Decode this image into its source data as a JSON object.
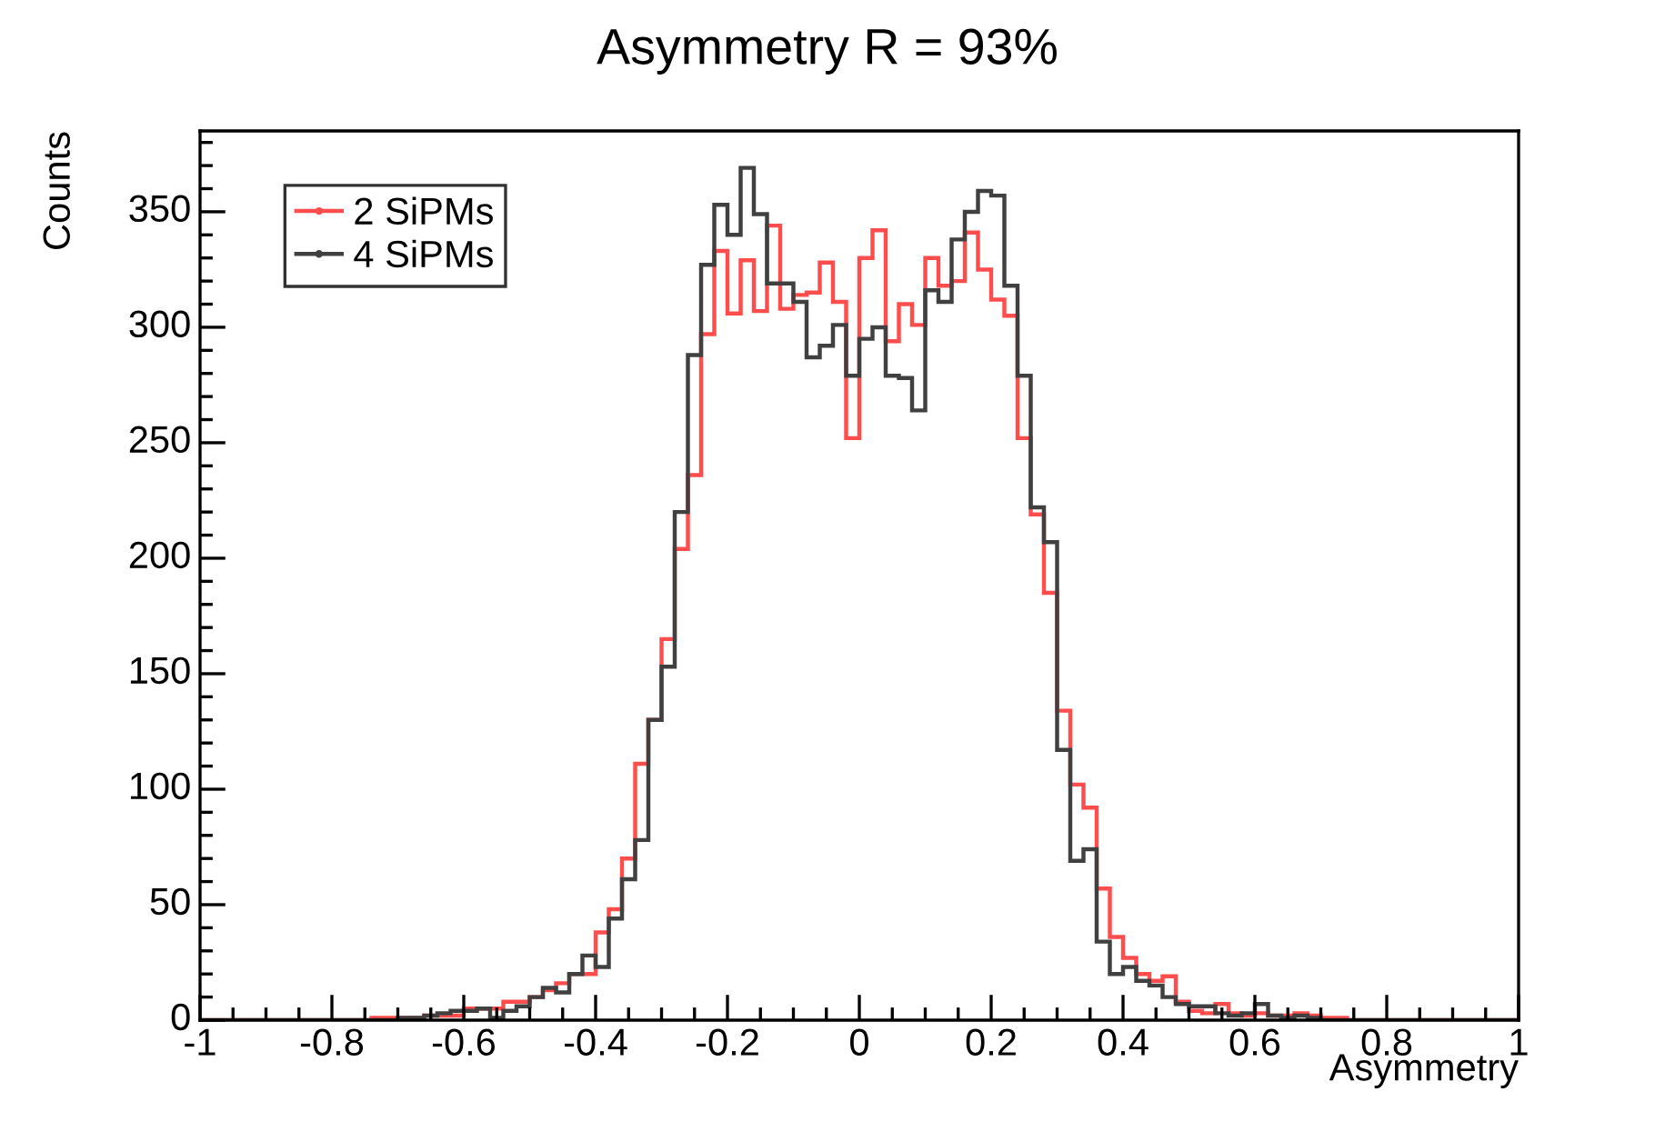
{
  "chart_data": {
    "type": "histogram",
    "title": "Asymmetry R = 93%",
    "xlabel": "Asymmetry",
    "ylabel": "Counts",
    "bins": [
      -1,
      -0.98,
      -0.96,
      -0.94,
      -0.92,
      -0.9,
      -0.88,
      -0.86,
      -0.84,
      -0.82,
      -0.8,
      -0.78,
      -0.76,
      -0.74,
      -0.72,
      -0.7,
      -0.68,
      -0.66,
      -0.64,
      -0.62,
      -0.6,
      -0.58,
      -0.56,
      -0.54,
      -0.52,
      -0.5,
      -0.48,
      -0.46,
      -0.44,
      -0.42,
      -0.4,
      -0.38,
      -0.36,
      -0.34,
      -0.32,
      -0.3,
      -0.28,
      -0.26,
      -0.24,
      -0.22,
      -0.2,
      -0.18,
      -0.16,
      -0.14,
      -0.12,
      -0.1,
      -0.08,
      -0.06,
      -0.04,
      -0.02,
      0,
      0.02,
      0.04,
      0.06,
      0.08,
      0.1,
      0.12,
      0.14,
      0.16,
      0.18,
      0.2,
      0.22,
      0.24,
      0.26,
      0.28,
      0.3,
      0.32,
      0.34,
      0.36,
      0.38,
      0.4,
      0.42,
      0.44,
      0.46,
      0.48,
      0.5,
      0.52,
      0.54,
      0.56,
      0.58,
      0.6,
      0.62,
      0.64,
      0.66,
      0.68,
      0.7,
      0.72,
      0.74,
      0.76,
      0.78,
      0.8,
      0.82,
      0.84,
      0.86,
      0.88,
      0.9,
      0.92,
      0.94,
      0.96,
      0.98,
      1
    ],
    "series": [
      {
        "name": "2 SiPMs",
        "color": "#ff4d4d",
        "values": [
          0,
          0,
          0,
          0,
          0,
          0,
          0,
          0,
          0,
          0,
          0,
          0,
          0,
          1,
          1,
          1,
          1,
          2,
          2,
          2,
          5,
          5,
          5,
          8,
          8,
          10,
          13,
          16,
          20,
          20,
          38,
          48,
          70,
          111,
          130,
          165,
          204,
          236,
          297,
          333,
          306,
          329,
          307,
          344,
          308,
          314,
          315,
          328,
          311,
          252,
          330,
          342,
          294,
          310,
          301,
          330,
          318,
          320,
          341,
          325,
          312,
          305,
          252,
          219,
          185,
          134,
          102,
          92,
          57,
          36,
          27,
          20,
          17,
          19,
          8,
          4,
          3,
          7,
          3,
          2,
          3,
          2,
          2,
          3,
          2,
          1,
          1,
          0,
          0,
          0,
          0,
          0,
          0,
          0,
          0,
          0,
          0,
          0,
          0,
          0
        ]
      },
      {
        "name": "4 SiPMs",
        "color": "#404040",
        "values": [
          0,
          0,
          0,
          0,
          0,
          0,
          0,
          0,
          0,
          0,
          0,
          0,
          0,
          0,
          0,
          1,
          1,
          2,
          3,
          4,
          4,
          5,
          1,
          4,
          6,
          10,
          14,
          12,
          20,
          28,
          23,
          44,
          61,
          78,
          130,
          153,
          220,
          288,
          327,
          353,
          340,
          369,
          349,
          319,
          319,
          311,
          287,
          292,
          301,
          279,
          295,
          300,
          279,
          278,
          264,
          316,
          311,
          338,
          350,
          359,
          357,
          318,
          279,
          222,
          207,
          117,
          69,
          74,
          34,
          20,
          23,
          17,
          15,
          10,
          7,
          6,
          6,
          3,
          2,
          3,
          7,
          2,
          1,
          2,
          1,
          0,
          0,
          0,
          0,
          0,
          0,
          0,
          0,
          0,
          0,
          0,
          0,
          0,
          0,
          0
        ]
      }
    ],
    "xlim": [
      -1,
      1
    ],
    "ylim": [
      0,
      385
    ],
    "xticks": [
      -1,
      -0.8,
      -0.6,
      -0.4,
      -0.2,
      0,
      0.2,
      0.4,
      0.6,
      0.8,
      1
    ],
    "yticks": [
      0,
      50,
      100,
      150,
      200,
      250,
      300,
      350
    ],
    "legend": "top left",
    "grid": false
  }
}
